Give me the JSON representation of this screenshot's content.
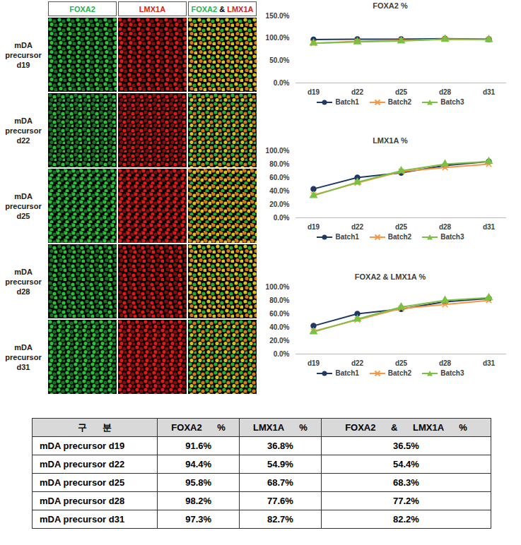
{
  "figure": {
    "images": {
      "columns": [
        {
          "parts": [
            {
              "text": "FOXA2",
              "color": "#2db34a"
            }
          ]
        },
        {
          "parts": [
            {
              "text": "LMX1A",
              "color": "#e02020"
            }
          ]
        },
        {
          "parts": [
            {
              "text": "FOXA2",
              "color": "#2db34a"
            },
            {
              "text": " & ",
              "color": "#000000"
            },
            {
              "text": "LMX1A",
              "color": "#e02020"
            }
          ]
        }
      ],
      "rows": [
        "mDA precursor d19",
        "mDA precursor d22",
        "mDA precursor d25",
        "mDA precursor d28",
        "mDA precursor d31"
      ]
    },
    "table": {
      "header": [
        "구 분",
        "FOXA2 %",
        "LMX1A %",
        "FOXA2 & LMX1A %"
      ],
      "rows": [
        [
          "mDA precursor d19",
          "91.6%",
          "36.8%",
          "36.5%"
        ],
        [
          "mDA precursor d22",
          "94.4%",
          "54.9%",
          "54.4%"
        ],
        [
          "mDA precursor d25",
          "95.8%",
          "68.7%",
          "68.3%"
        ],
        [
          "mDA precursor d28",
          "98.2%",
          "77.6%",
          "77.2%"
        ],
        [
          "mDA precursor d31",
          "97.3%",
          "82.7%",
          "82.2%"
        ]
      ]
    }
  },
  "chart_data": [
    {
      "type": "line",
      "title": "FOXA2 %",
      "categories": [
        "d19",
        "d22",
        "d25",
        "d28",
        "d31"
      ],
      "series": [
        {
          "name": "Batch1",
          "color": "#1f3864",
          "marker": "circle",
          "values": [
            97,
            98,
            98,
            99,
            98
          ]
        },
        {
          "name": "Batch2",
          "color": "#f79646",
          "marker": "x",
          "values": [
            89,
            93,
            95,
            98,
            97
          ]
        },
        {
          "name": "Batch3",
          "color": "#7ac143",
          "marker": "triangle",
          "values": [
            89,
            92,
            94,
            98,
            97
          ]
        }
      ],
      "ylim": [
        0,
        150
      ],
      "yticks": [
        {
          "value": 0,
          "label": "0.0%"
        },
        {
          "value": 50,
          "label": "50.0%"
        },
        {
          "value": 100,
          "label": "100.0%"
        },
        {
          "value": 150,
          "label": "150.0%"
        }
      ],
      "grid": false,
      "legend": "bottom"
    },
    {
      "type": "line",
      "title": "LMX1A %",
      "categories": [
        "d19",
        "d22",
        "d25",
        "d28",
        "d31"
      ],
      "series": [
        {
          "name": "Batch1",
          "color": "#1f3864",
          "marker": "circle",
          "values": [
            43,
            60,
            67,
            78,
            84
          ]
        },
        {
          "name": "Batch2",
          "color": "#f79646",
          "marker": "x",
          "values": [
            34,
            52,
            69,
            75,
            80
          ]
        },
        {
          "name": "Batch3",
          "color": "#7ac143",
          "marker": "triangle",
          "values": [
            33,
            53,
            70,
            80,
            84
          ]
        }
      ],
      "ylim": [
        0,
        100
      ],
      "yticks": [
        {
          "value": 0,
          "label": "0.0%"
        },
        {
          "value": 20,
          "label": "20.0%"
        },
        {
          "value": 40,
          "label": "40.0%"
        },
        {
          "value": 60,
          "label": "60.0%"
        },
        {
          "value": 80,
          "label": "80.0%"
        },
        {
          "value": 100,
          "label": "100.0%"
        }
      ],
      "grid": false,
      "legend": "bottom"
    },
    {
      "type": "line",
      "title": "FOXA2 & LMX1A %",
      "categories": [
        "d19",
        "d22",
        "d25",
        "d28",
        "d31"
      ],
      "series": [
        {
          "name": "Batch1",
          "color": "#1f3864",
          "marker": "circle",
          "values": [
            42,
            60,
            67,
            78,
            83
          ]
        },
        {
          "name": "Batch2",
          "color": "#f79646",
          "marker": "x",
          "values": [
            34,
            51,
            68,
            74,
            80
          ]
        },
        {
          "name": "Batch3",
          "color": "#7ac143",
          "marker": "triangle",
          "values": [
            33,
            52,
            70,
            80,
            84
          ]
        }
      ],
      "ylim": [
        0,
        100
      ],
      "yticks": [
        {
          "value": 0,
          "label": "0.0%"
        },
        {
          "value": 20,
          "label": "20.0%"
        },
        {
          "value": 40,
          "label": "40.0%"
        },
        {
          "value": 60,
          "label": "60.0%"
        },
        {
          "value": 80,
          "label": "80.0%"
        },
        {
          "value": 100,
          "label": "100.0%"
        }
      ],
      "grid": false,
      "legend": "bottom"
    }
  ]
}
